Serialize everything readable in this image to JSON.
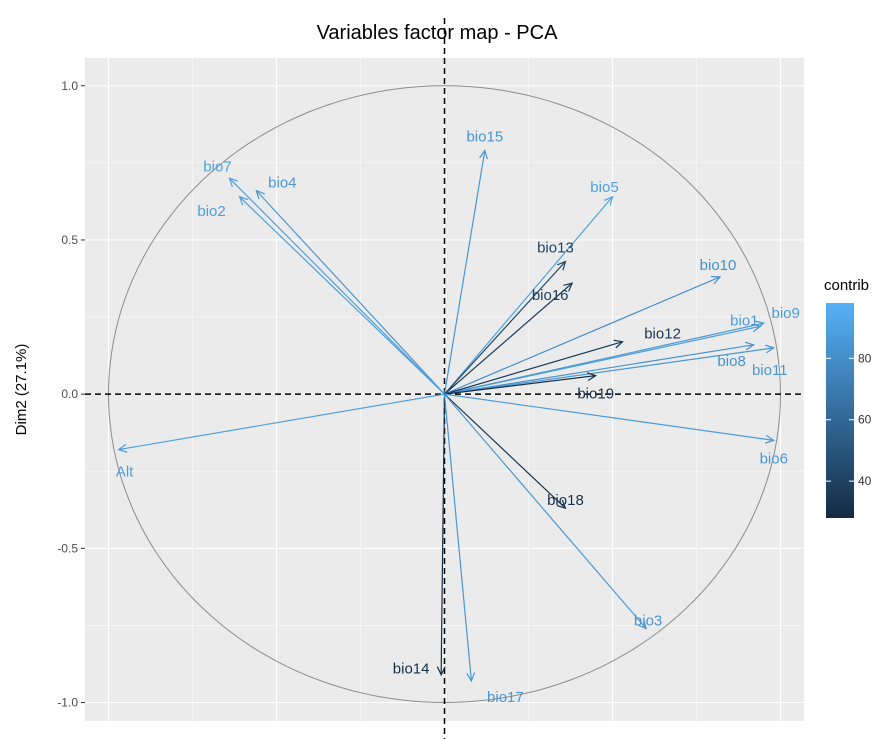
{
  "chart_data": {
    "type": "scatter",
    "title": "Variables factor map - PCA",
    "xlabel": "",
    "ylabel": "Dim2 (27.1%)",
    "xlim": [
      -1.07,
      1.07
    ],
    "ylim": [
      -1.06,
      1.09
    ],
    "y_ticks": [
      1.0,
      0.5,
      0.0,
      -0.5,
      -1.0
    ],
    "y_tick_labels": [
      "1.0",
      "0.5",
      "0.0",
      "-0.5",
      "-1.0"
    ],
    "grid": true,
    "unit_circle": true,
    "legend": {
      "title": "contrib",
      "placement": "right",
      "type": "colorbar",
      "ticks": [
        80,
        60,
        40
      ],
      "tick_labels": [
        "80",
        "60",
        "40"
      ],
      "range": [
        28,
        98
      ],
      "low_color": "#132B43",
      "high_color": "#56B1F7"
    },
    "variables": [
      {
        "name": "bio15",
        "x": 0.12,
        "y": 0.79,
        "contrib": 84
      },
      {
        "name": "bio7",
        "x": -0.64,
        "y": 0.7,
        "contrib": 90
      },
      {
        "name": "bio4",
        "x": -0.56,
        "y": 0.66,
        "contrib": 85
      },
      {
        "name": "bio2",
        "x": -0.61,
        "y": 0.64,
        "contrib": 88
      },
      {
        "name": "bio5",
        "x": 0.5,
        "y": 0.64,
        "contrib": 90
      },
      {
        "name": "bio13",
        "x": 0.36,
        "y": 0.43,
        "contrib": 42
      },
      {
        "name": "bio10",
        "x": 0.82,
        "y": 0.38,
        "contrib": 80
      },
      {
        "name": "bio16",
        "x": 0.38,
        "y": 0.36,
        "contrib": 38
      },
      {
        "name": "bio1",
        "x": 0.94,
        "y": 0.22,
        "contrib": 87
      },
      {
        "name": "bio9",
        "x": 0.95,
        "y": 0.23,
        "contrib": 86
      },
      {
        "name": "bio12",
        "x": 0.53,
        "y": 0.17,
        "contrib": 35
      },
      {
        "name": "bio8",
        "x": 0.92,
        "y": 0.16,
        "contrib": 82
      },
      {
        "name": "bio11",
        "x": 0.98,
        "y": 0.15,
        "contrib": 85
      },
      {
        "name": "bio19",
        "x": 0.45,
        "y": 0.06,
        "contrib": 30
      },
      {
        "name": "Alt",
        "x": -0.97,
        "y": -0.18,
        "contrib": 88
      },
      {
        "name": "bio6",
        "x": 0.98,
        "y": -0.15,
        "contrib": 86
      },
      {
        "name": "bio18",
        "x": 0.36,
        "y": -0.37,
        "contrib": 32
      },
      {
        "name": "bio3",
        "x": 0.6,
        "y": -0.76,
        "contrib": 84
      },
      {
        "name": "bio14",
        "x": -0.01,
        "y": -0.91,
        "contrib": 30
      },
      {
        "name": "bio17",
        "x": 0.08,
        "y": -0.93,
        "contrib": 84
      }
    ]
  }
}
